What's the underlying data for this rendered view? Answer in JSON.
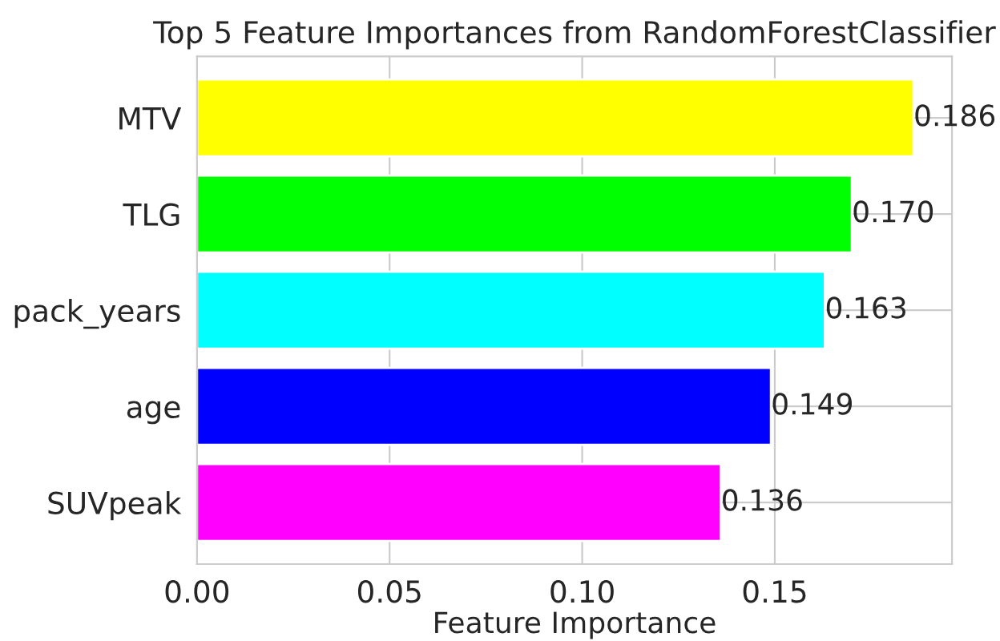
{
  "chart_data": {
    "type": "bar",
    "orientation": "horizontal",
    "title": "Top 5 Feature Importances from RandomForestClassifier",
    "xlabel": "Feature Importance",
    "categories": [
      "MTV",
      "TLG",
      "pack_years",
      "age",
      "SUVpeak"
    ],
    "values": [
      0.186,
      0.17,
      0.163,
      0.149,
      0.136
    ],
    "value_labels": [
      "0.186",
      "0.170",
      "0.163",
      "0.149",
      "0.136"
    ],
    "colors": [
      "#ffff00",
      "#00ff00",
      "#00ffff",
      "#0000ff",
      "#ff00ff"
    ],
    "xlim": [
      0,
      0.196
    ],
    "xticks": [
      {
        "value": 0,
        "label": "0.00"
      },
      {
        "value": 0.05,
        "label": "0.05"
      },
      {
        "value": 0.1,
        "label": "0.10"
      },
      {
        "value": 0.15,
        "label": "0.15"
      }
    ],
    "grid": true
  }
}
